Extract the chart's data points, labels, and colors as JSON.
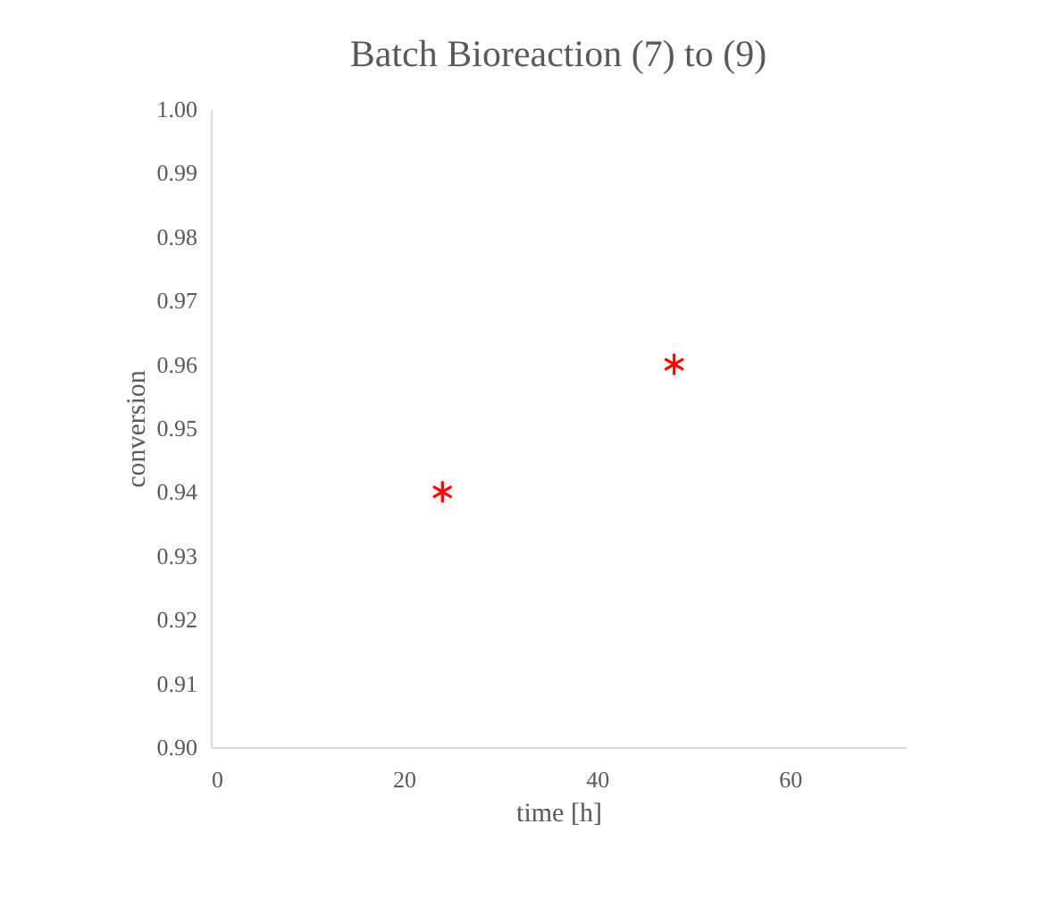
{
  "chart_data": {
    "type": "scatter",
    "title": "Batch Bioreaction (7) to (9)",
    "xlabel": "time [h]",
    "ylabel": "conversion",
    "x": [
      24,
      48
    ],
    "series": [
      {
        "color": "#ff0000",
        "values": [
          0.94,
          0.96
        ]
      }
    ],
    "xlim": [
      0,
      72
    ],
    "xticks": [
      0,
      20,
      40,
      60
    ],
    "ylim": [
      0.9,
      1.0
    ],
    "yticks": [
      {
        "value": 0.9,
        "label": "0.90"
      },
      0.91,
      0.92,
      0.93,
      0.94,
      0.95,
      0.96,
      0.97,
      0.98,
      0.99,
      {
        "value": 1.0,
        "label": "1.00"
      }
    ],
    "marker": "cross",
    "grid": false
  }
}
